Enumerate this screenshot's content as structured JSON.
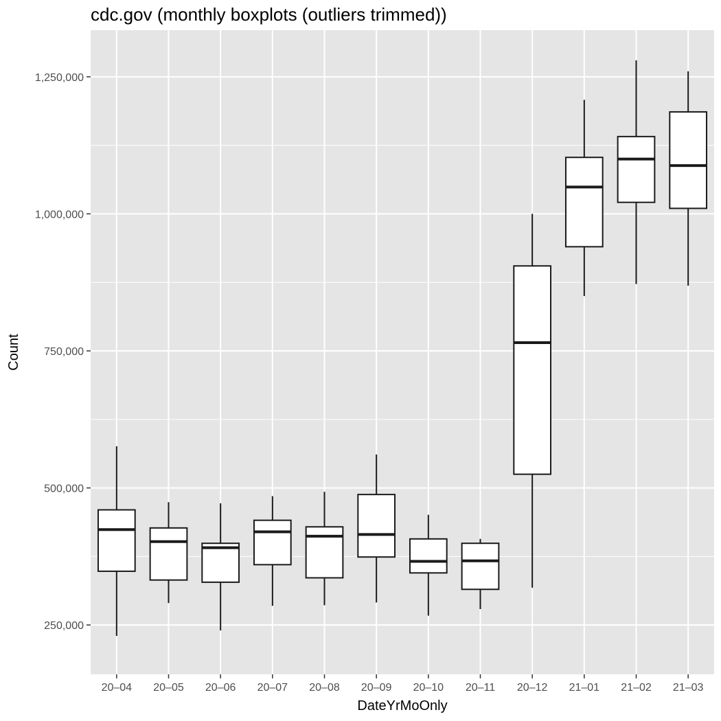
{
  "chart_data": {
    "type": "boxplot",
    "title": "cdc.gov  (monthly boxplots (outliers trimmed))",
    "xlabel": "DateYrMoOnly",
    "ylabel": "Count",
    "ylim": [
      160000,
      1335000
    ],
    "y_ticks": [
      250000,
      500000,
      750000,
      1000000,
      1250000
    ],
    "y_tick_labels": [
      "250,000",
      "500,000",
      "750,000",
      "1,000,000",
      "1,250,000"
    ],
    "minor_grid": true,
    "legend": "none",
    "categories": [
      "20–04",
      "20–05",
      "20–06",
      "20–07",
      "20–08",
      "20–09",
      "20–10",
      "20–11",
      "20–12",
      "21–01",
      "21–02",
      "21–03"
    ],
    "boxes": [
      {
        "min": 230000,
        "q1": 348000,
        "median": 424000,
        "q3": 460000,
        "max": 576000
      },
      {
        "min": 290000,
        "q1": 332000,
        "median": 402000,
        "q3": 427000,
        "max": 474000
      },
      {
        "min": 240000,
        "q1": 328000,
        "median": 391000,
        "q3": 399000,
        "max": 472000
      },
      {
        "min": 285000,
        "q1": 360000,
        "median": 420000,
        "q3": 441000,
        "max": 485000
      },
      {
        "min": 286000,
        "q1": 336000,
        "median": 412000,
        "q3": 429000,
        "max": 493000
      },
      {
        "min": 291000,
        "q1": 374000,
        "median": 415000,
        "q3": 488000,
        "max": 561000
      },
      {
        "min": 267000,
        "q1": 345000,
        "median": 366000,
        "q3": 407000,
        "max": 451000
      },
      {
        "min": 279000,
        "q1": 315000,
        "median": 367000,
        "q3": 399000,
        "max": 407000
      },
      {
        "min": 318000,
        "q1": 525000,
        "median": 765000,
        "q3": 905000,
        "max": 1000000
      },
      {
        "min": 850000,
        "q1": 940000,
        "median": 1049000,
        "q3": 1103000,
        "max": 1208000
      },
      {
        "min": 872000,
        "q1": 1021000,
        "median": 1100000,
        "q3": 1141000,
        "max": 1280000
      },
      {
        "min": 869000,
        "q1": 1010000,
        "median": 1088000,
        "q3": 1186000,
        "max": 1260000
      }
    ],
    "colors": {
      "panel": "#e5e5e5",
      "grid": "#ffffff",
      "box_fill": "#ffffff",
      "box_stroke": "#1a1a1a",
      "tick_text": "#4d4d4d"
    }
  }
}
